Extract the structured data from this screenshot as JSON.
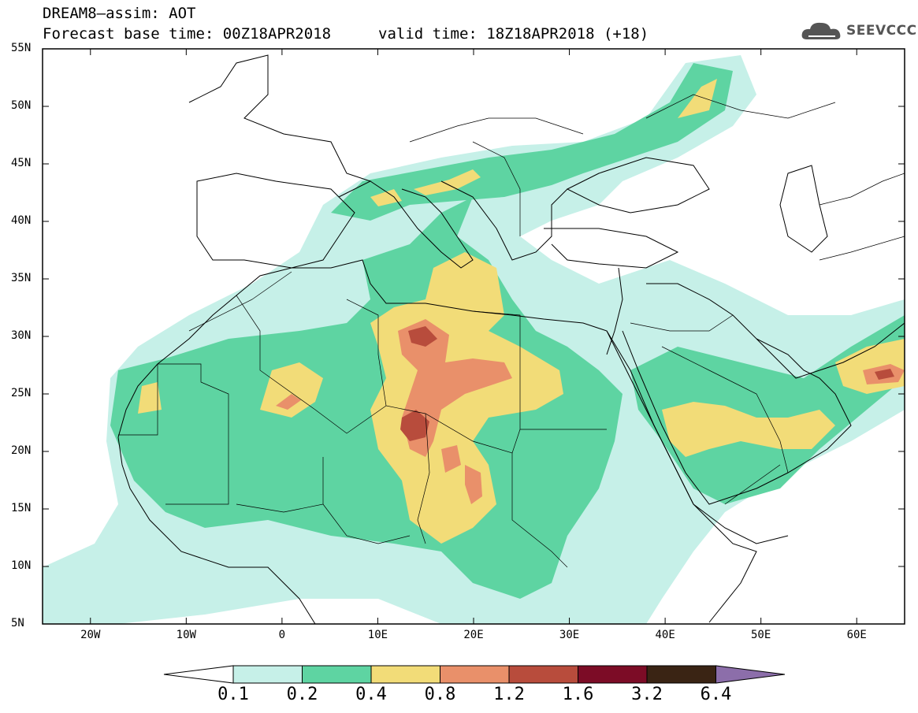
{
  "title_line1": "DREAM8–assim: AOT",
  "title_line2": "Forecast base time: 00Z18APR2018",
  "title_line2_valid": "valid time: 18Z18APR2018 (+18)",
  "logo_text": "SEEVCCC",
  "logo_icon": "cloud-icon",
  "map": {
    "lon_range": [
      -25,
      65
    ],
    "lat_range": [
      5,
      55
    ],
    "lon_ticks": [
      "20W",
      "10W",
      "0",
      "10E",
      "20E",
      "30E",
      "40E",
      "50E",
      "60E"
    ],
    "lat_ticks": [
      "55N",
      "50N",
      "45N",
      "40N",
      "35N",
      "30N",
      "25N",
      "20N",
      "15N",
      "10N",
      "5N"
    ]
  },
  "colorbar": {
    "labels": [
      "0.1",
      "0.2",
      "0.4",
      "0.8",
      "1.2",
      "1.6",
      "3.2",
      "6.4"
    ],
    "colors": [
      "#ffffff",
      "#c6f0e8",
      "#5ed4a2",
      "#f2dc78",
      "#e9906a",
      "#b84c3c",
      "#7c0c26",
      "#3a2414",
      "#8c6eaa"
    ]
  }
}
